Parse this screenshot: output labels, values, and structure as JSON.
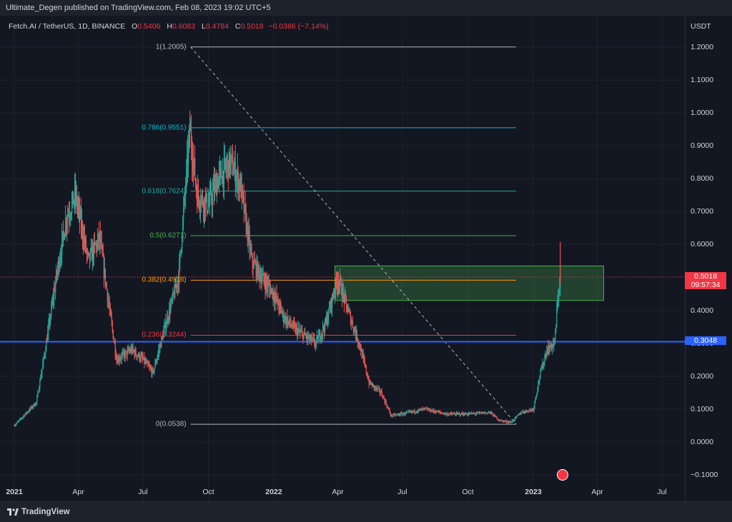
{
  "header": {
    "publisher_line": "Ultimate_Degen published on TradingView.com, Feb 08, 2023 19:02 UTC+5"
  },
  "legend": {
    "symbol": "Fetch.AI / TetherUS, 1D, BINANCE",
    "open_label": "O",
    "open": "0.5406",
    "high_label": "H",
    "high": "0.6083",
    "low_label": "L",
    "low": "0.4784",
    "close_label": "C",
    "close": "0.5018",
    "change": "−0.0386 (−7.14%)"
  },
  "price_axis": {
    "currency": "USDT",
    "ticks": [
      "1.2000",
      "1.1000",
      "1.0000",
      "0.9000",
      "0.8000",
      "0.7000",
      "0.6000",
      "0.5000",
      "0.4000",
      "0.3000",
      "0.2000",
      "0.1000",
      "0.0000",
      "−0.1000"
    ]
  },
  "time_axis": {
    "ticks": [
      {
        "label": "2021",
        "year": true
      },
      {
        "label": "Apr",
        "year": false
      },
      {
        "label": "Jul",
        "year": false
      },
      {
        "label": "Oct",
        "year": false
      },
      {
        "label": "2022",
        "year": true
      },
      {
        "label": "Apr",
        "year": false
      },
      {
        "label": "Jul",
        "year": false
      },
      {
        "label": "Oct",
        "year": false
      },
      {
        "label": "2023",
        "year": true
      },
      {
        "label": "Apr",
        "year": false
      },
      {
        "label": "Jul",
        "year": false
      }
    ]
  },
  "badges": {
    "last_price": "0.5018",
    "countdown": "09:57:34",
    "support_line": "0.3048"
  },
  "fib_levels": [
    {
      "label": "1(1.2005)",
      "value": 1.2005,
      "color": "#b2b5be"
    },
    {
      "label": "0.786(0.9551)",
      "value": 0.9551,
      "color": "#00bcd4"
    },
    {
      "label": "0.618(0.7624)",
      "value": 0.7624,
      "color": "#26a69a"
    },
    {
      "label": "0.5(0.6271)",
      "value": 0.6271,
      "color": "#4caf50"
    },
    {
      "label": "0.382(0.4918)",
      "value": 0.4918,
      "color": "#ff9800"
    },
    {
      "label": "0.236(0.3244)",
      "value": 0.3244,
      "color": "#f23645"
    },
    {
      "label": "0(0.0538)",
      "value": 0.0538,
      "color": "#b2b5be"
    }
  ],
  "chart_data": {
    "type": "candlestick",
    "title": "Fetch.AI / TetherUS, 1D, BINANCE",
    "ylabel": "USDT",
    "ylim": [
      -0.1,
      1.2
    ],
    "x_range": [
      "2021-01-01",
      "2023-07-31"
    ],
    "grid": true,
    "up_color": "#26a69a",
    "down_color": "#ef5350",
    "series": [
      {
        "date": "2021-01-01",
        "close": 0.05
      },
      {
        "date": "2021-02-01",
        "close": 0.12
      },
      {
        "date": "2021-02-15",
        "close": 0.3
      },
      {
        "date": "2021-03-01",
        "close": 0.5
      },
      {
        "date": "2021-03-15",
        "close": 0.68
      },
      {
        "date": "2021-03-28",
        "close": 0.75
      },
      {
        "date": "2021-04-15",
        "close": 0.55
      },
      {
        "date": "2021-05-01",
        "close": 0.62
      },
      {
        "date": "2021-05-15",
        "close": 0.4
      },
      {
        "date": "2021-05-25",
        "close": 0.25
      },
      {
        "date": "2021-06-15",
        "close": 0.28
      },
      {
        "date": "2021-07-01",
        "close": 0.25
      },
      {
        "date": "2021-07-15",
        "close": 0.21
      },
      {
        "date": "2021-08-01",
        "close": 0.35
      },
      {
        "date": "2021-08-20",
        "close": 0.5
      },
      {
        "date": "2021-09-05",
        "close": 0.95
      },
      {
        "date": "2021-09-15",
        "close": 0.75
      },
      {
        "date": "2021-10-01",
        "close": 0.72
      },
      {
        "date": "2021-10-15",
        "close": 0.8
      },
      {
        "date": "2021-11-01",
        "close": 0.85
      },
      {
        "date": "2021-11-15",
        "close": 0.78
      },
      {
        "date": "2021-12-01",
        "close": 0.55
      },
      {
        "date": "2021-12-15",
        "close": 0.5
      },
      {
        "date": "2022-01-01",
        "close": 0.45
      },
      {
        "date": "2022-01-15",
        "close": 0.38
      },
      {
        "date": "2022-02-01",
        "close": 0.34
      },
      {
        "date": "2022-02-15",
        "close": 0.32
      },
      {
        "date": "2022-03-01",
        "close": 0.3
      },
      {
        "date": "2022-03-15",
        "close": 0.36
      },
      {
        "date": "2022-04-01",
        "close": 0.5
      },
      {
        "date": "2022-04-15",
        "close": 0.4
      },
      {
        "date": "2022-05-01",
        "close": 0.3
      },
      {
        "date": "2022-05-15",
        "close": 0.18
      },
      {
        "date": "2022-06-01",
        "close": 0.15
      },
      {
        "date": "2022-06-15",
        "close": 0.08
      },
      {
        "date": "2022-07-01",
        "close": 0.085
      },
      {
        "date": "2022-08-01",
        "close": 0.1
      },
      {
        "date": "2022-09-01",
        "close": 0.085
      },
      {
        "date": "2022-10-01",
        "close": 0.085
      },
      {
        "date": "2022-11-01",
        "close": 0.09
      },
      {
        "date": "2022-11-15",
        "close": 0.065
      },
      {
        "date": "2022-12-01",
        "close": 0.06
      },
      {
        "date": "2022-12-15",
        "close": 0.09
      },
      {
        "date": "2023-01-01",
        "close": 0.1
      },
      {
        "date": "2023-01-10",
        "close": 0.2
      },
      {
        "date": "2023-01-20",
        "close": 0.28
      },
      {
        "date": "2023-01-31",
        "close": 0.3
      },
      {
        "date": "2023-02-05",
        "close": 0.45
      },
      {
        "date": "2023-02-08",
        "close": 0.5018
      }
    ],
    "annotations": {
      "support_line_value": 0.3048,
      "last_price_value": 0.5018,
      "zone": {
        "from_date": "2022-03-28",
        "to_date": "2023-04-10",
        "top": 0.535,
        "bottom": 0.43
      },
      "trend_line": {
        "from_date": "2021-09-06",
        "from_value": 1.2005,
        "to_date": "2022-12-08",
        "to_value": 0.0538
      }
    }
  }
}
